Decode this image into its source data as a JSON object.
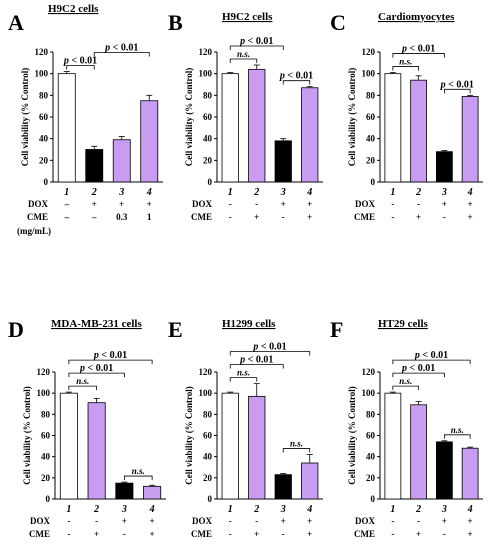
{
  "chart_data": [
    {
      "panel": "A",
      "type": "bar",
      "title": "H9C2 cells",
      "ylabel": "Cell viability (% Control)",
      "ylim": [
        0,
        120
      ],
      "yticks": [
        0,
        20,
        40,
        60,
        80,
        100,
        120
      ],
      "categories": [
        "1",
        "2",
        "3",
        "4"
      ],
      "values": [
        100,
        30,
        39,
        75
      ],
      "errors": [
        2,
        3,
        3,
        5
      ],
      "colors": [
        "#ffffff",
        "#000000",
        "#c89cf0",
        "#c89cf0"
      ],
      "treatments": [
        {
          "label": "DOX",
          "values": [
            "–",
            "+",
            "+",
            "+"
          ]
        },
        {
          "label": "CME",
          "values": [
            "–",
            "–",
            "0.3",
            "1"
          ]
        }
      ],
      "unit_note": "(mg/mL)",
      "comparisons": [
        {
          "from": 0,
          "to": 1,
          "text_prefix": "p",
          "text": " < 0.01"
        },
        {
          "from": 1,
          "to": 3,
          "text_prefix": "p",
          "text": " < 0.01"
        }
      ]
    },
    {
      "panel": "B",
      "type": "bar",
      "title": "H9C2 cells",
      "ylabel": "Cell viability (% Control)",
      "ylim": [
        0,
        120
      ],
      "yticks": [
        0,
        20,
        40,
        60,
        80,
        100,
        120
      ],
      "categories": [
        "1",
        "2",
        "3",
        "4"
      ],
      "values": [
        100,
        104,
        38,
        87
      ],
      "errors": [
        1,
        4,
        2,
        1
      ],
      "colors": [
        "#ffffff",
        "#c89cf0",
        "#000000",
        "#c89cf0"
      ],
      "treatments": [
        {
          "label": "DOX",
          "values": [
            "-",
            "-",
            "+",
            "+"
          ]
        },
        {
          "label": "CME",
          "values": [
            "-",
            "+",
            "-",
            "+"
          ]
        }
      ],
      "comparisons": [
        {
          "from": 0,
          "to": 1,
          "text": "n.s."
        },
        {
          "from": 0,
          "to": 2,
          "text_prefix": "p",
          "text": " < 0.01"
        },
        {
          "from": 2,
          "to": 3,
          "text_prefix": "p",
          "text": " < 0.01"
        }
      ]
    },
    {
      "panel": "C",
      "type": "bar",
      "title": "Cardiomyocytes",
      "ylabel": "Cell viability (% Control)",
      "ylim": [
        0,
        120
      ],
      "yticks": [
        0,
        20,
        40,
        60,
        80,
        100,
        120
      ],
      "categories": [
        "1",
        "2",
        "3",
        "4"
      ],
      "values": [
        100,
        94,
        28,
        79
      ],
      "errors": [
        1,
        4,
        1,
        1
      ],
      "colors": [
        "#ffffff",
        "#c89cf0",
        "#000000",
        "#c89cf0"
      ],
      "treatments": [
        {
          "label": "DOX",
          "values": [
            "-",
            "-",
            "+",
            "+"
          ]
        },
        {
          "label": "CME",
          "values": [
            "-",
            "+",
            "-",
            "+"
          ]
        }
      ],
      "comparisons": [
        {
          "from": 0,
          "to": 1,
          "text": "n.s."
        },
        {
          "from": 0,
          "to": 2,
          "text_prefix": "p",
          "text": " < 0.01"
        },
        {
          "from": 2,
          "to": 3,
          "text_prefix": "p",
          "text": " < 0.01"
        }
      ]
    },
    {
      "panel": "D",
      "type": "bar",
      "title": "MDA-MB-231 cells",
      "ylabel": "Cell viability (% Control)",
      "ylim": [
        0,
        120
      ],
      "yticks": [
        0,
        20,
        40,
        60,
        80,
        100,
        120
      ],
      "categories": [
        "1",
        "2",
        "3",
        "4"
      ],
      "values": [
        100,
        91,
        15,
        12
      ],
      "errors": [
        1,
        4,
        1,
        1
      ],
      "colors": [
        "#ffffff",
        "#c89cf0",
        "#000000",
        "#c89cf0"
      ],
      "treatments": [
        {
          "label": "DOX",
          "values": [
            "-",
            "-",
            "+",
            "+"
          ]
        },
        {
          "label": "CME",
          "values": [
            "-",
            "+",
            "-",
            "+"
          ]
        }
      ],
      "comparisons": [
        {
          "from": 0,
          "to": 1,
          "text": "n.s."
        },
        {
          "from": 0,
          "to": 2,
          "text_prefix": "p",
          "text": " < 0.01"
        },
        {
          "from": 0,
          "to": 3,
          "text_prefix": "p",
          "text": " < 0.01"
        },
        {
          "from": 2,
          "to": 3,
          "text": "n.s."
        }
      ]
    },
    {
      "panel": "E",
      "type": "bar",
      "title": "H1299 cells",
      "ylabel": "Cell viability (% Control)",
      "ylim": [
        0,
        120
      ],
      "yticks": [
        0,
        20,
        40,
        60,
        80,
        100,
        120
      ],
      "categories": [
        "1",
        "2",
        "3",
        "4"
      ],
      "values": [
        100,
        97,
        23,
        34
      ],
      "errors": [
        1,
        12,
        1,
        8
      ],
      "colors": [
        "#ffffff",
        "#c89cf0",
        "#000000",
        "#c89cf0"
      ],
      "treatments": [
        {
          "label": "DOX",
          "values": [
            "-",
            "-",
            "+",
            "+"
          ]
        },
        {
          "label": "CME",
          "values": [
            "-",
            "+",
            "-",
            "+"
          ]
        }
      ],
      "comparisons": [
        {
          "from": 0,
          "to": 1,
          "text": "n.s."
        },
        {
          "from": 0,
          "to": 2,
          "text_prefix": "p",
          "text": " < 0.01"
        },
        {
          "from": 0,
          "to": 3,
          "text_prefix": "p",
          "text": " < 0.01"
        },
        {
          "from": 2,
          "to": 3,
          "text": "n.s."
        }
      ]
    },
    {
      "panel": "F",
      "type": "bar",
      "title": "HT29 cells",
      "ylabel": "Cell viability (% Control)",
      "ylim": [
        0,
        120
      ],
      "yticks": [
        0,
        20,
        40,
        60,
        80,
        100,
        120
      ],
      "categories": [
        "1",
        "2",
        "3",
        "4"
      ],
      "values": [
        100,
        89,
        54,
        48
      ],
      "errors": [
        1,
        3,
        1,
        1
      ],
      "colors": [
        "#ffffff",
        "#c89cf0",
        "#000000",
        "#c89cf0"
      ],
      "treatments": [
        {
          "label": "DOX",
          "values": [
            "-",
            "-",
            "+",
            "+"
          ]
        },
        {
          "label": "CME",
          "values": [
            "-",
            "+",
            "-",
            "+"
          ]
        }
      ],
      "comparisons": [
        {
          "from": 0,
          "to": 1,
          "text": "n.s."
        },
        {
          "from": 0,
          "to": 2,
          "text_prefix": "p",
          "text": " < 0.01"
        },
        {
          "from": 0,
          "to": 3,
          "text_prefix": "p",
          "text": " < 0.01"
        },
        {
          "from": 2,
          "to": 3,
          "text": "n.s."
        }
      ]
    }
  ]
}
